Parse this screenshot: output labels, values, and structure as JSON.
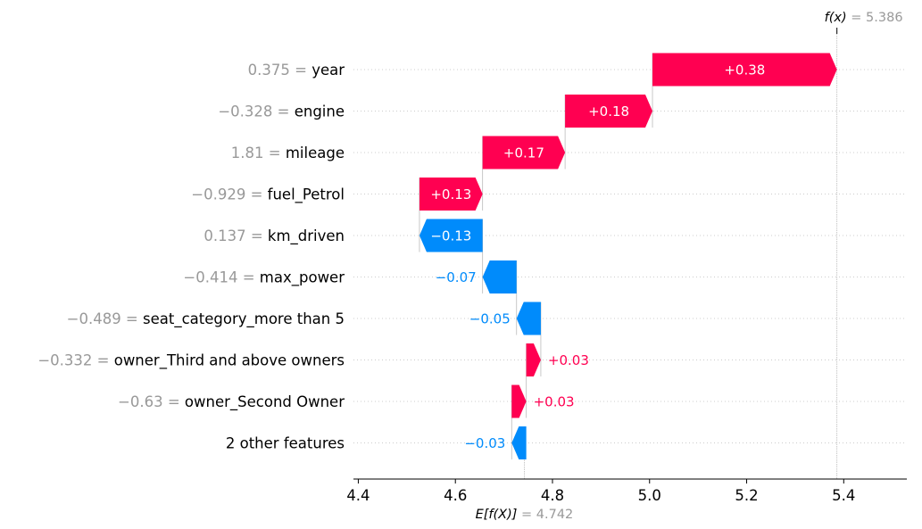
{
  "chart_data": {
    "type": "waterfall",
    "title": "",
    "xlabel": "",
    "ylabel": "",
    "xlim": [
      4.39,
      5.53
    ],
    "xticks": [
      "4.4",
      "4.6",
      "4.8",
      "5.0",
      "5.2",
      "5.4"
    ],
    "xtick_values": [
      4.4,
      4.6,
      4.8,
      5.0,
      5.2,
      5.4
    ],
    "base_value": 4.742,
    "base_label": "E[f(X)]",
    "base_value_text": "= 4.742",
    "output_value": 5.386,
    "output_label": "f(x)",
    "output_value_text": "= 5.386",
    "features": [
      {
        "value_text": "0.375 =",
        "name": "year",
        "contribution": 0.38,
        "label": "+0.38"
      },
      {
        "value_text": "−0.328 =",
        "name": "engine",
        "contribution": 0.18,
        "label": "+0.18"
      },
      {
        "value_text": "1.81 =",
        "name": "mileage",
        "contribution": 0.17,
        "label": "+0.17"
      },
      {
        "value_text": "−0.929 =",
        "name": "fuel_Petrol",
        "contribution": 0.13,
        "label": "+0.13"
      },
      {
        "value_text": "0.137 =",
        "name": "km_driven",
        "contribution": -0.13,
        "label": "−0.13"
      },
      {
        "value_text": "−0.414 =",
        "name": "max_power",
        "contribution": -0.07,
        "label": "−0.07"
      },
      {
        "value_text": "−0.489 =",
        "name": "seat_category_more than 5",
        "contribution": -0.05,
        "label": "−0.05"
      },
      {
        "value_text": "−0.332 =",
        "name": "owner_Third and above owners",
        "contribution": 0.03,
        "label": "+0.03"
      },
      {
        "value_text": "−0.63 =",
        "name": "owner_Second Owner",
        "contribution": 0.03,
        "label": "+0.03"
      },
      {
        "value_text": "",
        "name": "2 other features",
        "contribution": -0.03,
        "label": "−0.03"
      }
    ],
    "colors": {
      "positive": "#ff0051",
      "negative": "#008bfb",
      "muted": "#999999",
      "grid": "#cccccc"
    }
  }
}
